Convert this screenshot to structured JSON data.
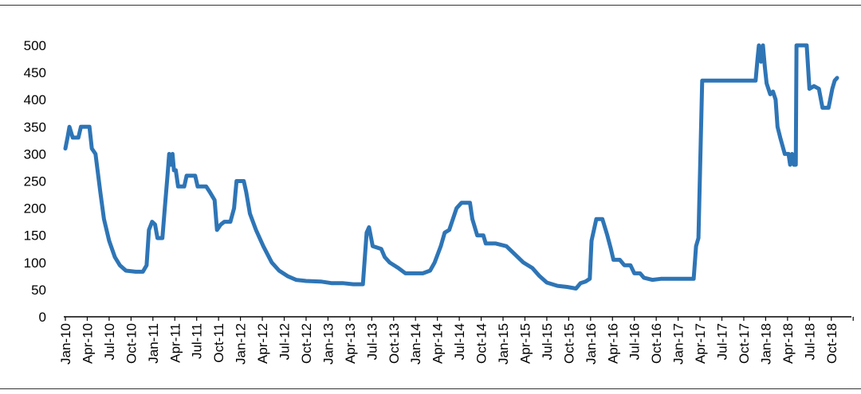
{
  "chart_data": {
    "type": "line",
    "title": "",
    "xlabel": "",
    "ylabel": "",
    "ylim": [
      0,
      500
    ],
    "xlim": [
      "2010-01",
      "2018-12"
    ],
    "grid": false,
    "legend": "none",
    "y_ticks": [
      0,
      50,
      100,
      150,
      200,
      250,
      300,
      350,
      400,
      450,
      500
    ],
    "x_tick_labels": [
      "Jan-10",
      "Apr-10",
      "Jul-10",
      "Oct-10",
      "Jan-11",
      "Apr-11",
      "Jul-11",
      "Oct-11",
      "Jan-12",
      "Apr-12",
      "Jul-12",
      "Oct-12",
      "Jan-13",
      "Apr-13",
      "Jul-13",
      "Oct-13",
      "Jan-14",
      "Apr-14",
      "Jul-14",
      "Oct-14",
      "Jan-15",
      "Apr-15",
      "Jul-15",
      "Oct-15",
      "Jan-16",
      "Apr-16",
      "Jul-16",
      "Oct-16",
      "Jan-17",
      "Apr-17",
      "Jul-17",
      "Oct-17",
      "Jan-18",
      "Apr-18",
      "Jul-18",
      "Oct-18"
    ],
    "series": [
      {
        "color": "#2e75b6",
        "points": [
          [
            "2010-01-01",
            310
          ],
          [
            "2010-01-10",
            330
          ],
          [
            "2010-01-18",
            350
          ],
          [
            "2010-02-01",
            330
          ],
          [
            "2010-02-25",
            330
          ],
          [
            "2010-03-05",
            350
          ],
          [
            "2010-04-10",
            350
          ],
          [
            "2010-04-20",
            310
          ],
          [
            "2010-05-05",
            300
          ],
          [
            "2010-05-25",
            230
          ],
          [
            "2010-06-10",
            180
          ],
          [
            "2010-07-01",
            140
          ],
          [
            "2010-07-25",
            110
          ],
          [
            "2010-08-15",
            95
          ],
          [
            "2010-09-10",
            85
          ],
          [
            "2010-10-20",
            83
          ],
          [
            "2010-11-20",
            83
          ],
          [
            "2010-12-05",
            95
          ],
          [
            "2010-12-15",
            160
          ],
          [
            "2010-12-28",
            175
          ],
          [
            "2011-01-10",
            170
          ],
          [
            "2011-01-20",
            145
          ],
          [
            "2011-02-10",
            145
          ],
          [
            "2011-02-20",
            200
          ],
          [
            "2011-03-01",
            260
          ],
          [
            "2011-03-08",
            300
          ],
          [
            "2011-03-15",
            280
          ],
          [
            "2011-03-22",
            300
          ],
          [
            "2011-03-28",
            270
          ],
          [
            "2011-04-05",
            270
          ],
          [
            "2011-04-15",
            240
          ],
          [
            "2011-05-10",
            240
          ],
          [
            "2011-05-20",
            260
          ],
          [
            "2011-06-25",
            260
          ],
          [
            "2011-07-05",
            240
          ],
          [
            "2011-08-10",
            240
          ],
          [
            "2011-08-25",
            230
          ],
          [
            "2011-09-15",
            215
          ],
          [
            "2011-09-25",
            160
          ],
          [
            "2011-10-10",
            170
          ],
          [
            "2011-10-25",
            175
          ],
          [
            "2011-11-20",
            175
          ],
          [
            "2011-12-05",
            200
          ],
          [
            "2011-12-15",
            250
          ],
          [
            "2012-01-15",
            250
          ],
          [
            "2012-01-25",
            230
          ],
          [
            "2012-02-10",
            190
          ],
          [
            "2012-03-05",
            160
          ],
          [
            "2012-04-05",
            130
          ],
          [
            "2012-05-10",
            100
          ],
          [
            "2012-06-10",
            85
          ],
          [
            "2012-07-15",
            75
          ],
          [
            "2012-08-20",
            68
          ],
          [
            "2012-10-01",
            66
          ],
          [
            "2012-12-01",
            65
          ],
          [
            "2013-01-15",
            62
          ],
          [
            "2013-03-01",
            62
          ],
          [
            "2013-04-15",
            60
          ],
          [
            "2013-05-25",
            60
          ],
          [
            "2013-06-10",
            155
          ],
          [
            "2013-06-20",
            165
          ],
          [
            "2013-07-05",
            130
          ],
          [
            "2013-08-10",
            125
          ],
          [
            "2013-08-25",
            110
          ],
          [
            "2013-09-15",
            100
          ],
          [
            "2013-10-20",
            90
          ],
          [
            "2013-11-20",
            80
          ],
          [
            "2013-12-20",
            80
          ],
          [
            "2014-02-01",
            80
          ],
          [
            "2014-03-01",
            85
          ],
          [
            "2014-03-20",
            100
          ],
          [
            "2014-04-15",
            130
          ],
          [
            "2014-05-01",
            155
          ],
          [
            "2014-05-20",
            160
          ],
          [
            "2014-06-05",
            180
          ],
          [
            "2014-06-20",
            200
          ],
          [
            "2014-07-10",
            210
          ],
          [
            "2014-08-15",
            210
          ],
          [
            "2014-08-25",
            180
          ],
          [
            "2014-09-15",
            150
          ],
          [
            "2014-10-10",
            150
          ],
          [
            "2014-10-20",
            135
          ],
          [
            "2014-12-01",
            135
          ],
          [
            "2015-01-15",
            130
          ],
          [
            "2015-02-20",
            115
          ],
          [
            "2015-03-25",
            100
          ],
          [
            "2015-05-01",
            90
          ],
          [
            "2015-06-01",
            75
          ],
          [
            "2015-07-01",
            63
          ],
          [
            "2015-08-15",
            57
          ],
          [
            "2015-09-25",
            55
          ],
          [
            "2015-11-01",
            52
          ],
          [
            "2015-11-20",
            62
          ],
          [
            "2015-12-10",
            65
          ],
          [
            "2015-12-28",
            70
          ],
          [
            "2016-01-05",
            140
          ],
          [
            "2016-01-25",
            180
          ],
          [
            "2016-02-20",
            180
          ],
          [
            "2016-03-10",
            150
          ],
          [
            "2016-03-25",
            125
          ],
          [
            "2016-04-05",
            105
          ],
          [
            "2016-05-01",
            105
          ],
          [
            "2016-05-20",
            95
          ],
          [
            "2016-06-15",
            95
          ],
          [
            "2016-07-01",
            80
          ],
          [
            "2016-07-25",
            80
          ],
          [
            "2016-08-10",
            72
          ],
          [
            "2016-09-15",
            68
          ],
          [
            "2016-10-20",
            70
          ],
          [
            "2016-12-15",
            70
          ],
          [
            "2017-03-05",
            70
          ],
          [
            "2017-03-15",
            130
          ],
          [
            "2017-03-25",
            145
          ],
          [
            "2017-04-10",
            435
          ],
          [
            "2017-11-20",
            435
          ],
          [
            "2017-11-28",
            475
          ],
          [
            "2017-12-03",
            500
          ],
          [
            "2017-12-12",
            470
          ],
          [
            "2017-12-20",
            500
          ],
          [
            "2017-12-28",
            460
          ],
          [
            "2018-01-05",
            430
          ],
          [
            "2018-01-20",
            410
          ],
          [
            "2018-02-01",
            415
          ],
          [
            "2018-02-12",
            400
          ],
          [
            "2018-02-20",
            350
          ],
          [
            "2018-03-01",
            330
          ],
          [
            "2018-03-20",
            300
          ],
          [
            "2018-04-05",
            300
          ],
          [
            "2018-04-12",
            280
          ],
          [
            "2018-04-20",
            300
          ],
          [
            "2018-04-28",
            280
          ],
          [
            "2018-05-05",
            280
          ],
          [
            "2018-05-08",
            500
          ],
          [
            "2018-06-20",
            500
          ],
          [
            "2018-07-01",
            420
          ],
          [
            "2018-07-20",
            425
          ],
          [
            "2018-08-10",
            420
          ],
          [
            "2018-08-25",
            385
          ],
          [
            "2018-09-20",
            385
          ],
          [
            "2018-10-05",
            420
          ],
          [
            "2018-10-15",
            435
          ],
          [
            "2018-10-25",
            440
          ]
        ]
      }
    ]
  }
}
